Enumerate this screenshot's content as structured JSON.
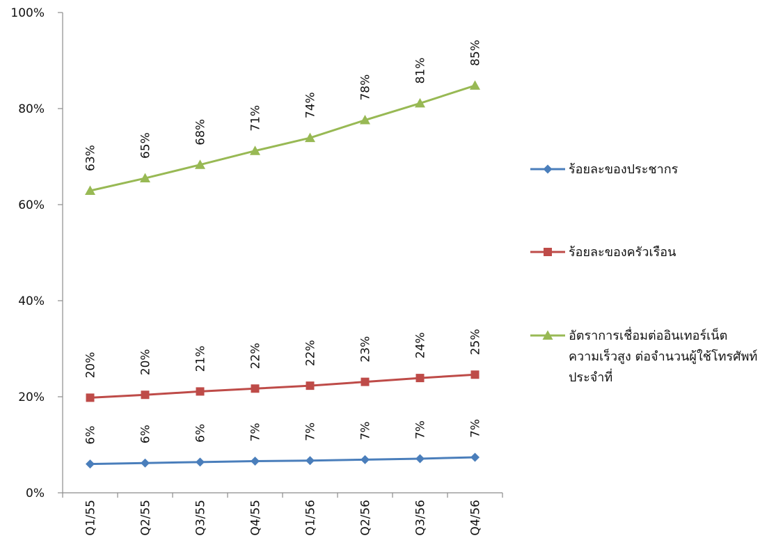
{
  "chart_data": {
    "type": "line",
    "categories": [
      "Q1/55",
      "Q2/55",
      "Q3/55",
      "Q4/55",
      "Q1/56",
      "Q2/56",
      "Q3/56",
      "Q4/56"
    ],
    "ylim": [
      0,
      100
    ],
    "yticks": [
      0,
      20,
      40,
      60,
      80,
      100
    ],
    "ytick_labels": [
      "0%",
      "20%",
      "40%",
      "60%",
      "80%",
      "100%"
    ],
    "grid": false,
    "legend_position": "right",
    "series": [
      {
        "name": "ร้อยละของประชากร",
        "color": "#4a7ebb",
        "marker": "diamond",
        "values": [
          6.0,
          6.2,
          6.4,
          6.6,
          6.7,
          6.9,
          7.1,
          7.4
        ],
        "labels": [
          "6%",
          "6%",
          "6%",
          "7%",
          "7%",
          "7%",
          "7%",
          "7%"
        ]
      },
      {
        "name": "ร้อยละของครัวเรือน",
        "color": "#be4b48",
        "marker": "square",
        "values": [
          19.8,
          20.4,
          21.1,
          21.7,
          22.3,
          23.1,
          23.9,
          24.6
        ],
        "labels": [
          "20%",
          "20%",
          "21%",
          "22%",
          "22%",
          "23%",
          "24%",
          "25%"
        ]
      },
      {
        "name": "อัตราการเชื่อมต่ออินเทอร์เน็ต ความเร็วสูง ต่อจำนวนผู้ใช้โทรศัพท์ ประจำที่",
        "legend_lines": [
          "อัตราการเชื่อมต่ออินเทอร์เน็ต",
          "ความเร็วสูง ต่อจำนวนผู้ใช้โทรศัพท์",
          "ประจำที่"
        ],
        "color": "#98b954",
        "marker": "triangle",
        "values": [
          62.9,
          65.5,
          68.3,
          71.2,
          73.9,
          77.6,
          81.1,
          84.8
        ],
        "labels": [
          "63%",
          "65%",
          "68%",
          "71%",
          "74%",
          "78%",
          "81%",
          "85%"
        ]
      }
    ]
  }
}
